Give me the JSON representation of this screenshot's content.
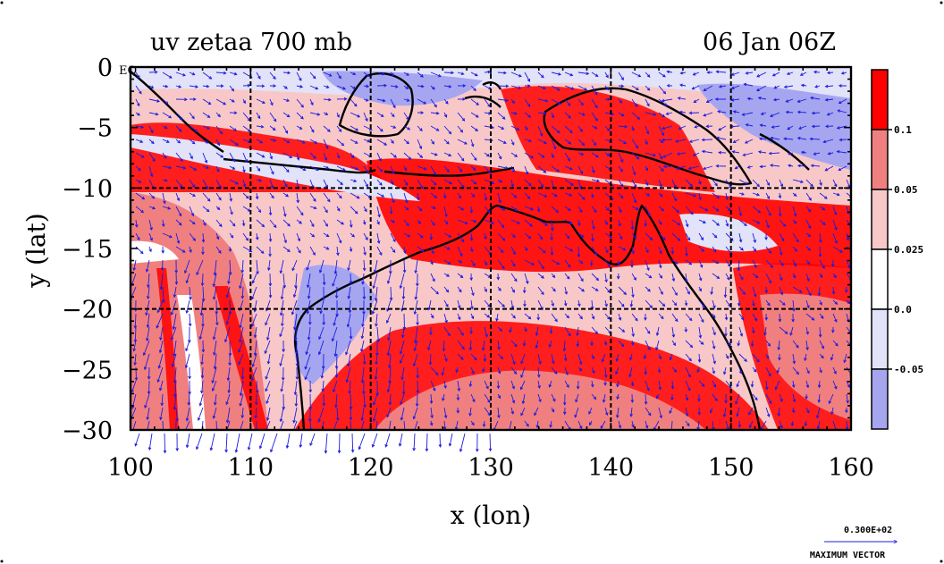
{
  "chart_data": {
    "type": "heatmap",
    "title_left": "uv zetaa 700 mb",
    "title_right": "06 Jan 06Z",
    "xlabel": "x (lon)",
    "ylabel": "y (lat)",
    "xlim": [
      100,
      160
    ],
    "ylim": [
      -30,
      0
    ],
    "x_ticks": [
      100,
      110,
      120,
      130,
      140,
      150,
      160
    ],
    "x_tick_labels": [
      "100",
      "110",
      "120",
      "130",
      "140",
      "150",
      "160"
    ],
    "y_ticks": [
      0,
      -5,
      -10,
      -15,
      -20,
      -25,
      -30
    ],
    "y_tick_labels": [
      "0",
      "−5",
      "−10",
      "−15",
      "−20",
      "−25",
      "−30"
    ],
    "eq_label": "EQ",
    "grid": true,
    "grid_lon": [
      110,
      120,
      130,
      140,
      150
    ],
    "grid_lat": [
      -10,
      -20
    ],
    "colorbar": {
      "placement": "right",
      "levels": [
        {
          "label": "",
          "color": "#ff0000"
        },
        {
          "label": "0.1",
          "color": "#f08080"
        },
        {
          "label": "0.05",
          "color": "#f8c8c8"
        },
        {
          "label": "0.025",
          "color": "#ffffff"
        },
        {
          "label": "0.0",
          "color": "#e2e2f8"
        },
        {
          "label": "-0.05",
          "color": "#a6a6f0"
        }
      ]
    },
    "vector_key": {
      "value": "0.300E+02",
      "label": "MAXIMUM VECTOR",
      "color": "#1c1ce0"
    },
    "vector_color": "#1c1ce0",
    "land_outline_color": "#000000"
  }
}
